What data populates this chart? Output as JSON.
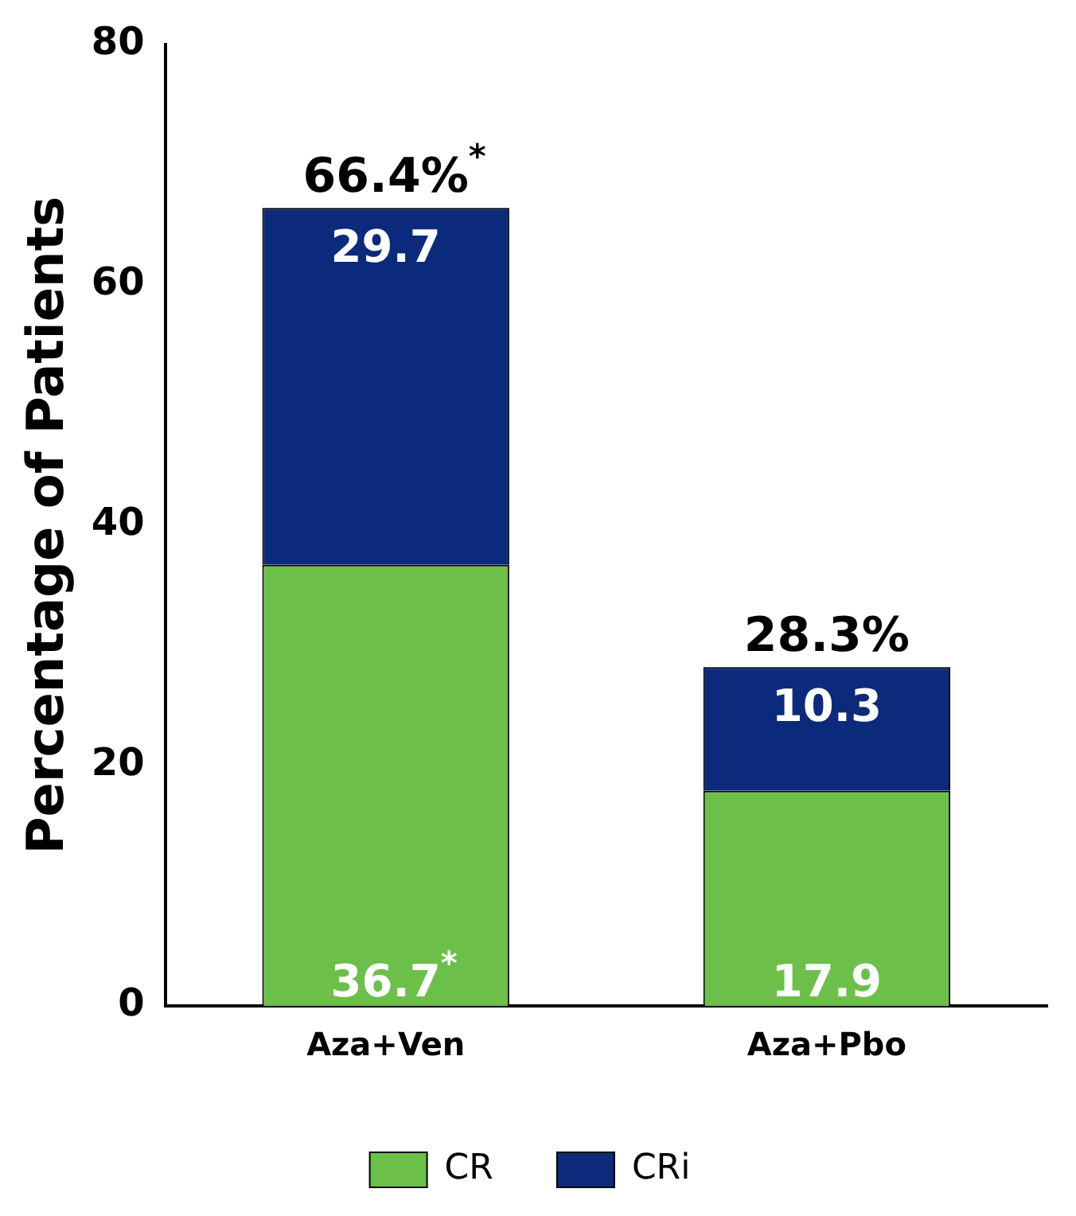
{
  "chart_data": {
    "type": "bar",
    "stacked": true,
    "categories": [
      "Aza+Ven",
      "Aza+Pbo"
    ],
    "ylabel": "Percentage of Patients",
    "ylim": [
      0,
      80
    ],
    "yticks": [
      0,
      20,
      40,
      60,
      80
    ],
    "grid": false,
    "legend": "bottom",
    "series": [
      {
        "name": "CR",
        "color": "#6cc04a",
        "values": [
          36.7,
          17.9
        ],
        "value_labels": [
          "36.7$^{*}$",
          "17.9"
        ]
      },
      {
        "name": "CRi",
        "color": "#0b2a7c",
        "values": [
          29.7,
          10.3
        ],
        "value_labels": [
          "29.7",
          "10.3"
        ]
      }
    ],
    "totals": [
      "66.4%$^{*}$",
      "28.3%"
    ]
  }
}
